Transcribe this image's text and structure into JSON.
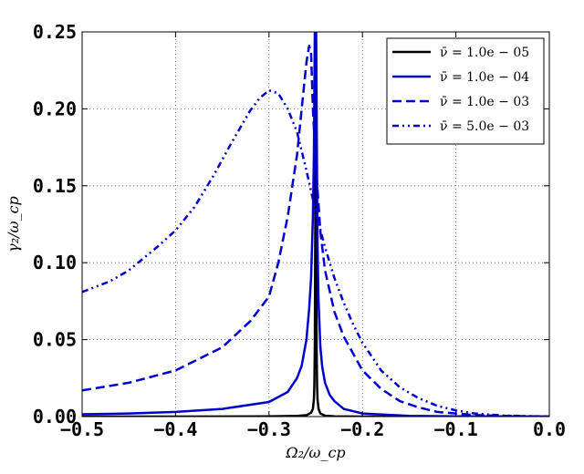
{
  "chart_data": {
    "type": "line",
    "xlabel": "Ω₂/ω_cp",
    "ylabel": "γ₂/ω_cp",
    "xlim": [
      -0.5,
      0.0
    ],
    "ylim": [
      0.0,
      0.25
    ],
    "x_ticks": [
      "−0.5",
      "−0.4",
      "−0.3",
      "−0.2",
      "−0.1",
      "0.0"
    ],
    "y_ticks": [
      "0.00",
      "0.05",
      "0.10",
      "0.15",
      "0.20",
      "0.25"
    ],
    "grid": true,
    "legend_position": "top-right",
    "series": [
      {
        "name": "ν̄ = 1.0e − 05",
        "color": "#000000",
        "style": "solid",
        "x": [
          -0.5,
          -0.4,
          -0.3,
          -0.27,
          -0.26,
          -0.255,
          -0.253,
          -0.252,
          -0.2515,
          -0.251,
          -0.2505,
          -0.25,
          -0.2495,
          -0.249,
          -0.2485,
          -0.248,
          -0.247,
          -0.245,
          -0.24,
          -0.23,
          -0.2,
          -0.1,
          0.0
        ],
        "y": [
          0.0,
          0.0,
          0.0001,
          0.0004,
          0.0009,
          0.0025,
          0.005,
          0.011,
          0.02,
          0.045,
          0.12,
          0.25,
          0.12,
          0.045,
          0.02,
          0.011,
          0.005,
          0.002,
          0.0006,
          0.0002,
          0.0,
          0.0,
          0.0
        ]
      },
      {
        "name": "ν̄ = 1.0e − 04",
        "color": "#0000cc",
        "style": "solid",
        "x": [
          -0.5,
          -0.45,
          -0.4,
          -0.35,
          -0.3,
          -0.28,
          -0.27,
          -0.265,
          -0.26,
          -0.257,
          -0.255,
          -0.253,
          -0.252,
          -0.2515,
          -0.251,
          -0.2505,
          -0.25,
          -0.2495,
          -0.249,
          -0.2485,
          -0.248,
          -0.247,
          -0.245,
          -0.243,
          -0.24,
          -0.235,
          -0.23,
          -0.22,
          -0.2,
          -0.15,
          -0.1,
          0.0
        ],
        "y": [
          0.0015,
          0.002,
          0.003,
          0.005,
          0.0095,
          0.016,
          0.025,
          0.033,
          0.05,
          0.07,
          0.09,
          0.13,
          0.17,
          0.21,
          0.25,
          0.25,
          0.25,
          0.25,
          0.2,
          0.15,
          0.11,
          0.075,
          0.045,
          0.032,
          0.022,
          0.014,
          0.01,
          0.005,
          0.002,
          0.0005,
          0.0002,
          0.0
        ]
      },
      {
        "name": "ν̄ = 1.0e − 03",
        "color": "#0000cc",
        "style": "dashed",
        "x": [
          -0.5,
          -0.45,
          -0.4,
          -0.35,
          -0.32,
          -0.3,
          -0.29,
          -0.28,
          -0.27,
          -0.265,
          -0.26,
          -0.257,
          -0.255,
          -0.253,
          -0.25,
          -0.245,
          -0.24,
          -0.23,
          -0.22,
          -0.2,
          -0.18,
          -0.16,
          -0.14,
          -0.12,
          -0.1,
          -0.08,
          -0.05,
          0.0
        ],
        "y": [
          0.017,
          0.022,
          0.03,
          0.045,
          0.062,
          0.078,
          0.1,
          0.13,
          0.17,
          0.2,
          0.23,
          0.241,
          0.236,
          0.2,
          0.165,
          0.12,
          0.095,
          0.068,
          0.052,
          0.03,
          0.018,
          0.01,
          0.006,
          0.003,
          0.002,
          0.001,
          0.0005,
          0.0
        ]
      },
      {
        "name": "ν̄ = 5.0e − 03",
        "color": "#0000cc",
        "style": "dashdotdot",
        "x": [
          -0.5,
          -0.47,
          -0.45,
          -0.42,
          -0.4,
          -0.38,
          -0.36,
          -0.34,
          -0.32,
          -0.31,
          -0.3,
          -0.29,
          -0.28,
          -0.27,
          -0.26,
          -0.25,
          -0.24,
          -0.23,
          -0.22,
          -0.21,
          -0.2,
          -0.18,
          -0.16,
          -0.14,
          -0.12,
          -0.1,
          -0.08,
          -0.05,
          0.0
        ],
        "y": [
          0.081,
          0.088,
          0.095,
          0.11,
          0.121,
          0.136,
          0.156,
          0.178,
          0.199,
          0.207,
          0.212,
          0.21,
          0.2,
          0.185,
          0.16,
          0.133,
          0.11,
          0.09,
          0.074,
          0.06,
          0.048,
          0.03,
          0.019,
          0.012,
          0.007,
          0.004,
          0.002,
          0.0007,
          0.0
        ]
      }
    ]
  }
}
